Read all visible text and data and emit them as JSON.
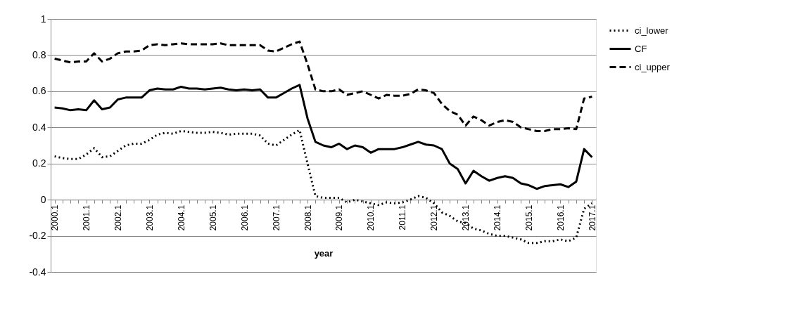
{
  "chart_data": {
    "type": "line",
    "xlabel": "year",
    "categories": [
      "2000.1",
      null,
      null,
      null,
      "2001.1",
      null,
      null,
      null,
      "2002.1",
      null,
      null,
      null,
      "2003.1",
      null,
      null,
      null,
      "2004.1",
      null,
      null,
      null,
      "2005.1",
      null,
      null,
      null,
      "2006.1",
      null,
      null,
      null,
      "2007.1",
      null,
      null,
      null,
      "2008.1",
      null,
      null,
      null,
      "2009.1",
      null,
      null,
      null,
      "2010.1",
      null,
      null,
      null,
      "2011.1",
      null,
      null,
      null,
      "2012.1",
      null,
      null,
      null,
      "2013.1",
      null,
      null,
      null,
      "2014.1",
      null,
      null,
      null,
      "2015.1",
      null,
      null,
      null,
      "2016.1",
      null,
      null,
      null,
      "2017.1"
    ],
    "series": [
      {
        "name": "ci_lower",
        "color": "#000000",
        "line_style": "dotted",
        "values": [
          0.24,
          0.23,
          0.225,
          0.225,
          0.25,
          0.285,
          0.235,
          0.24,
          0.27,
          0.3,
          0.31,
          0.31,
          0.33,
          0.36,
          0.37,
          0.365,
          0.38,
          0.375,
          0.37,
          0.37,
          0.375,
          0.37,
          0.36,
          0.365,
          0.365,
          0.365,
          0.355,
          0.31,
          0.3,
          0.33,
          0.36,
          0.385,
          0.2,
          0.02,
          0.01,
          0.01,
          0.01,
          -0.015,
          0.0,
          -0.01,
          -0.02,
          -0.03,
          -0.015,
          -0.02,
          -0.015,
          0.0,
          0.02,
          0.01,
          -0.02,
          -0.07,
          -0.09,
          -0.12,
          -0.13,
          -0.16,
          -0.17,
          -0.19,
          -0.2,
          -0.2,
          -0.21,
          -0.22,
          -0.24,
          -0.24,
          -0.23,
          -0.23,
          -0.22,
          -0.23,
          -0.21,
          -0.05,
          -0.02
        ]
      },
      {
        "name": "CF",
        "color": "#000000",
        "line_style": "solid",
        "values": [
          0.51,
          0.505,
          0.495,
          0.5,
          0.495,
          0.55,
          0.5,
          0.51,
          0.555,
          0.565,
          0.565,
          0.565,
          0.605,
          0.615,
          0.61,
          0.61,
          0.625,
          0.615,
          0.615,
          0.61,
          0.615,
          0.62,
          0.61,
          0.605,
          0.61,
          0.605,
          0.61,
          0.565,
          0.565,
          0.59,
          0.615,
          0.635,
          0.45,
          0.32,
          0.3,
          0.29,
          0.31,
          0.28,
          0.3,
          0.29,
          0.26,
          0.28,
          0.28,
          0.28,
          0.29,
          0.305,
          0.32,
          0.305,
          0.3,
          0.28,
          0.2,
          0.17,
          0.09,
          0.16,
          0.13,
          0.105,
          0.12,
          0.13,
          0.12,
          0.09,
          0.08,
          0.06,
          0.075,
          0.08,
          0.085,
          0.07,
          0.1,
          0.28,
          0.235
        ]
      },
      {
        "name": "ci_upper",
        "color": "#000000",
        "line_style": "dashed",
        "values": [
          0.78,
          0.77,
          0.76,
          0.765,
          0.765,
          0.81,
          0.765,
          0.78,
          0.81,
          0.82,
          0.82,
          0.825,
          0.855,
          0.86,
          0.855,
          0.86,
          0.865,
          0.86,
          0.86,
          0.86,
          0.86,
          0.865,
          0.855,
          0.855,
          0.855,
          0.855,
          0.855,
          0.825,
          0.82,
          0.84,
          0.86,
          0.875,
          0.75,
          0.61,
          0.6,
          0.6,
          0.61,
          0.58,
          0.59,
          0.6,
          0.58,
          0.56,
          0.58,
          0.575,
          0.575,
          0.585,
          0.61,
          0.605,
          0.59,
          0.53,
          0.49,
          0.47,
          0.41,
          0.46,
          0.44,
          0.41,
          0.43,
          0.44,
          0.43,
          0.4,
          0.39,
          0.38,
          0.38,
          0.39,
          0.39,
          0.395,
          0.39,
          0.56,
          0.57
        ]
      }
    ],
    "ylim": [
      -0.4,
      1
    ],
    "yticks": [
      -0.4,
      -0.2,
      0,
      0.2,
      0.4,
      0.6,
      0.8,
      1
    ],
    "grid": "y",
    "legend": "right"
  }
}
